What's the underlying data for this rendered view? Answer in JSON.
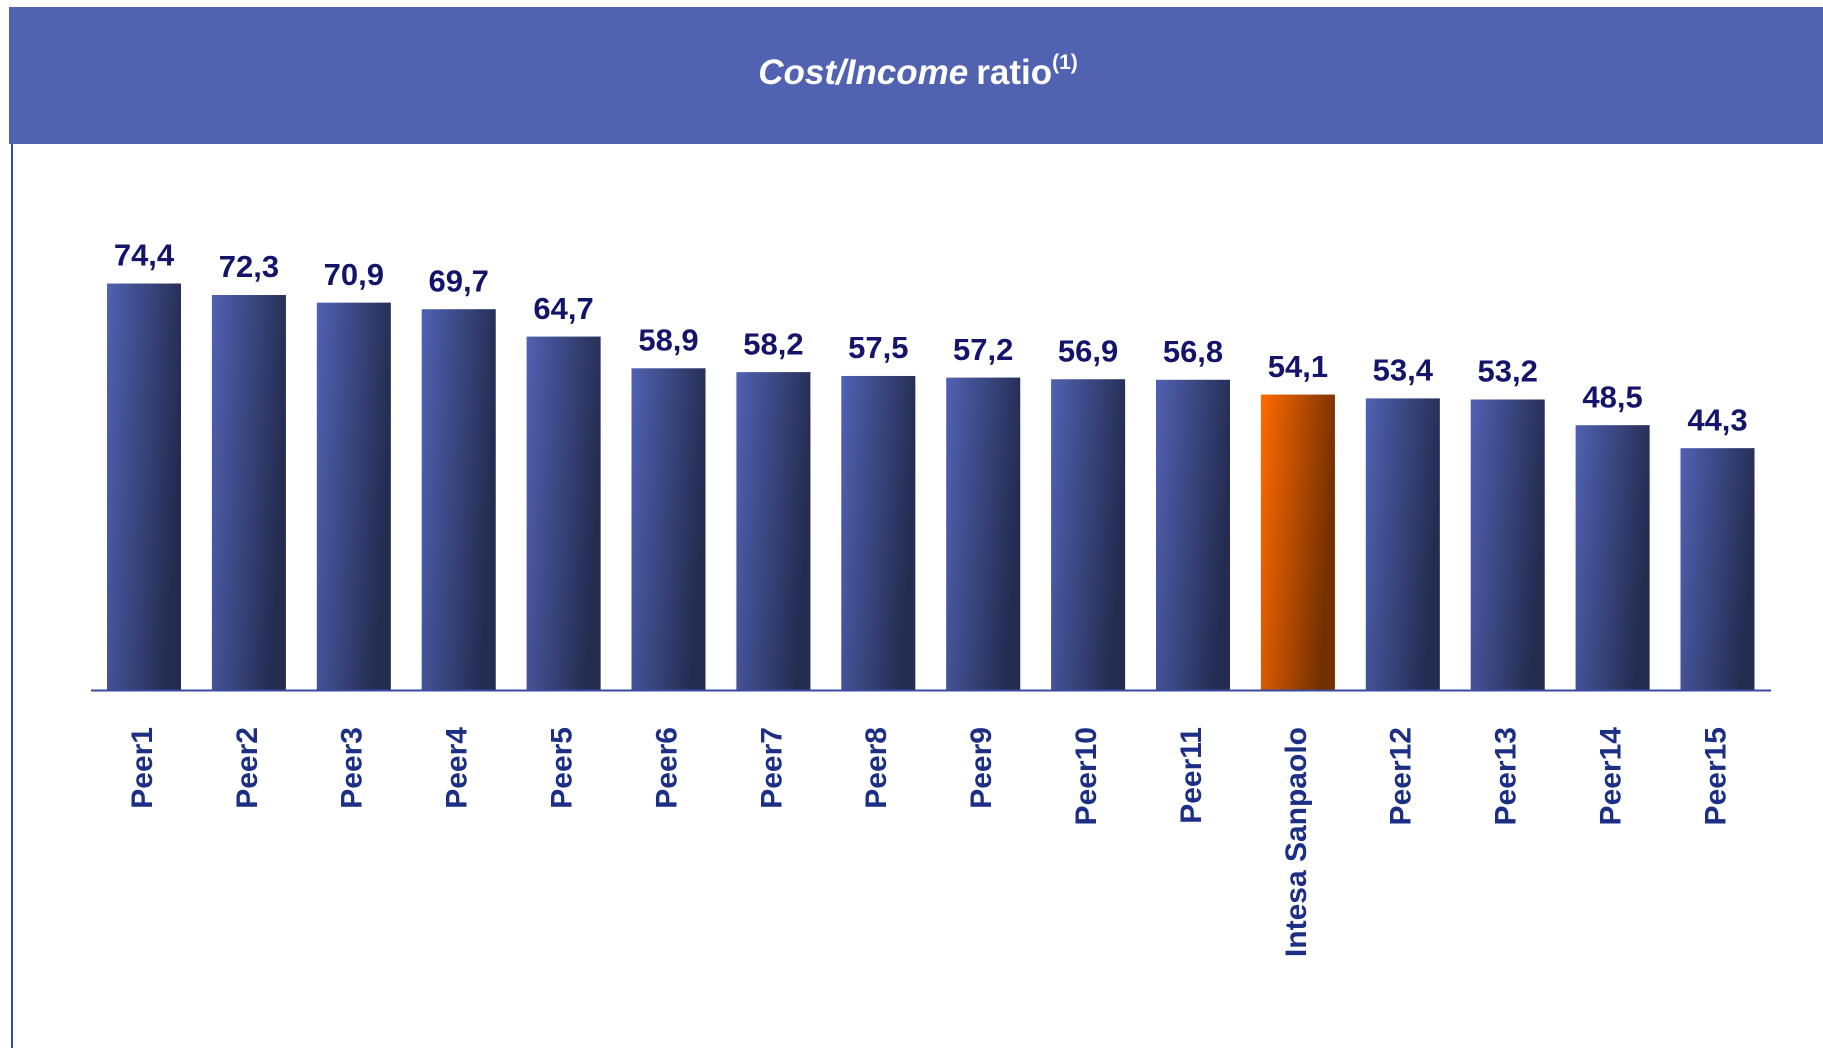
{
  "chart_data": {
    "type": "bar",
    "title": {
      "italic": "Cost/Income",
      "text": "ratio",
      "footnote": "(1)"
    },
    "categories": [
      "Peer1",
      "Peer2",
      "Peer3",
      "Peer4",
      "Peer5",
      "Peer6",
      "Peer7",
      "Peer8",
      "Peer9",
      "Peer10",
      "Peer11",
      "Intesa Sanpaolo",
      "Peer12",
      "Peer13",
      "Peer14",
      "Peer15"
    ],
    "values": [
      74.4,
      72.3,
      70.9,
      69.7,
      64.7,
      58.9,
      58.2,
      57.5,
      57.2,
      56.9,
      56.8,
      54.1,
      53.4,
      53.2,
      48.5,
      44.3
    ],
    "value_labels": [
      "74,4",
      "72,3",
      "70,9",
      "69,7",
      "64,7",
      "58,9",
      "58,2",
      "57,5",
      "57,2",
      "56,9",
      "56,8",
      "54,1",
      "53,4",
      "53,2",
      "48,5",
      "44,3"
    ],
    "colors": [
      "#5061b2",
      "#5061b2",
      "#5061b2",
      "#5061b2",
      "#5061b2",
      "#5061b2",
      "#5061b2",
      "#5061b2",
      "#5061b2",
      "#5061b2",
      "#5061b2",
      "#ff6a00",
      "#5061b2",
      "#5061b2",
      "#5061b2",
      "#5061b2"
    ]
  }
}
